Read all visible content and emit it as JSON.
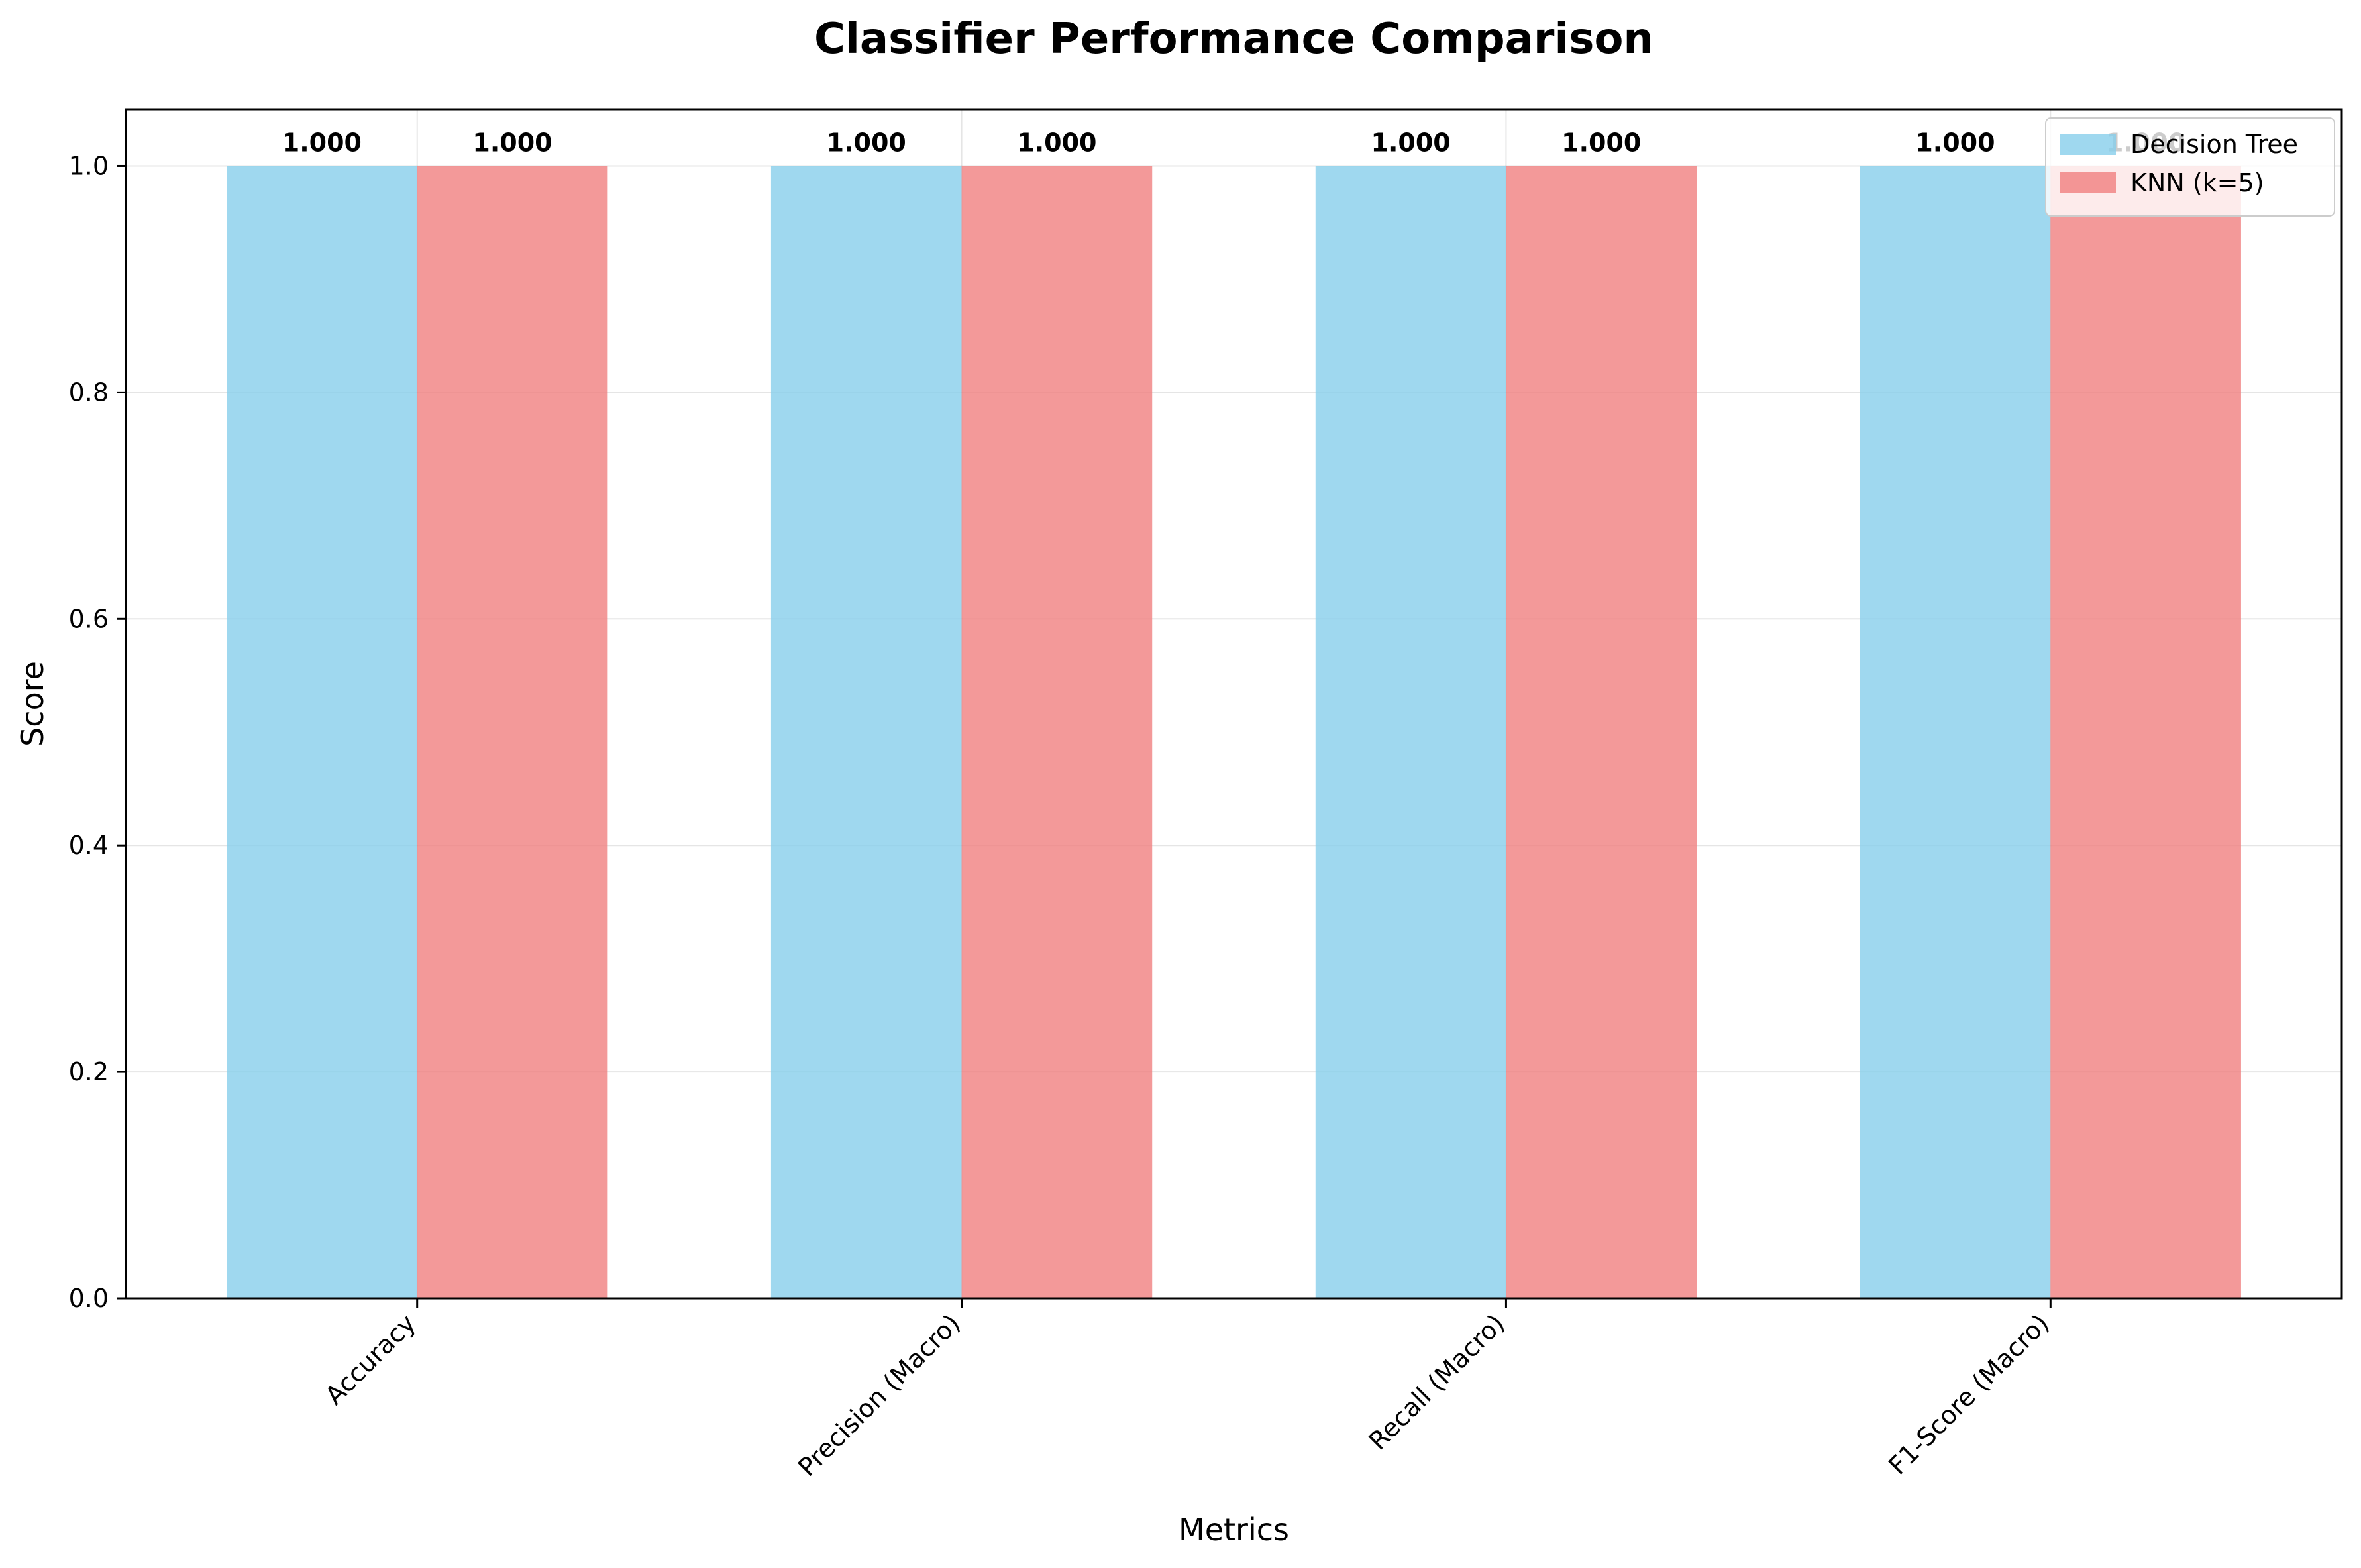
{
  "chart_data": {
    "type": "bar",
    "title": "Classifier Performance Comparison",
    "xlabel": "Metrics",
    "ylabel": "Score",
    "categories": [
      "Accuracy",
      "Precision (Macro)",
      "Recall (Macro)",
      "F1-Score (Macro)"
    ],
    "series": [
      {
        "name": "Decision Tree",
        "color": "#87ceeb",
        "values": [
          1.0,
          1.0,
          1.0,
          1.0
        ]
      },
      {
        "name": "KNN (k=5)",
        "color": "#f08080",
        "values": [
          1.0,
          1.0,
          1.0,
          1.0
        ]
      }
    ],
    "data_labels": [
      [
        "1.000",
        "1.000",
        "1.000",
        "1.000"
      ],
      [
        "1.000",
        "1.000",
        "1.000",
        "1.000"
      ]
    ],
    "ylim": [
      0,
      1.05
    ],
    "yticks": [
      "0.0",
      "0.2",
      "0.4",
      "0.6",
      "0.8",
      "1.0"
    ],
    "ytick_values": [
      0,
      0.2,
      0.4,
      0.6,
      0.8,
      1.0
    ],
    "grid": true,
    "legend_position": "top-right"
  }
}
